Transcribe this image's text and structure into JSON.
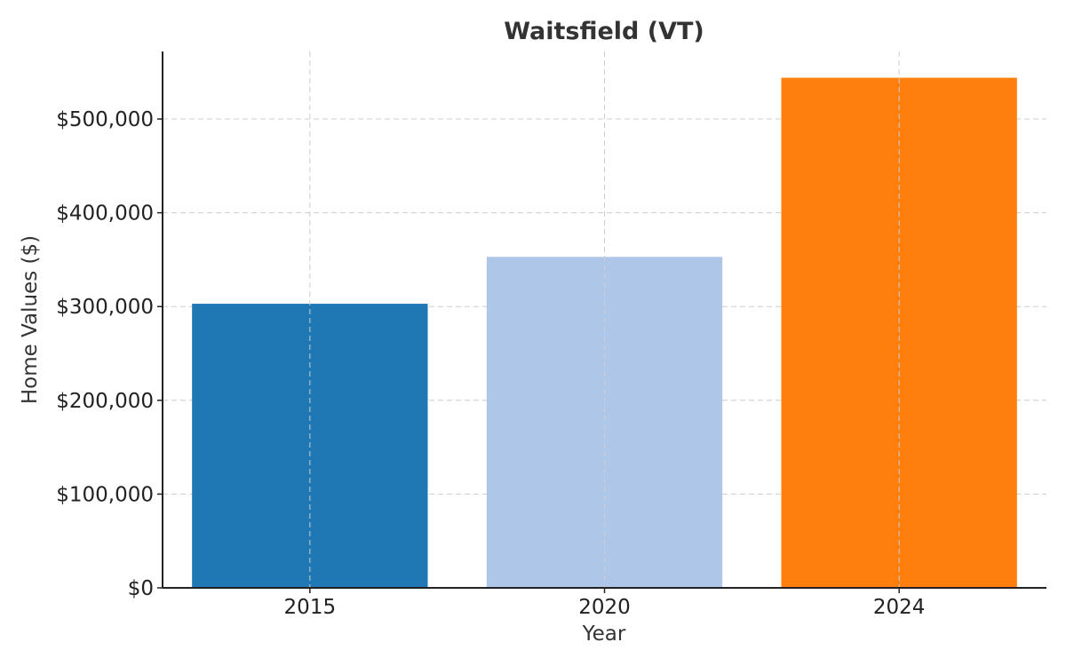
{
  "chart_data": {
    "type": "bar",
    "title": "Waitsfield (VT)",
    "xlabel": "Year",
    "ylabel": "Home Values ($)",
    "categories": [
      "2015",
      "2020",
      "2024"
    ],
    "values": [
      303000,
      353000,
      544000
    ],
    "colors": [
      "#1f77b4",
      "#aec7e8",
      "#ff7f0e"
    ],
    "ylim": [
      0,
      572000
    ],
    "yticks": [
      0,
      100000,
      200000,
      300000,
      400000,
      500000
    ],
    "ytick_labels": [
      "$0",
      "$100,000",
      "$200,000",
      "$300,000",
      "$400,000",
      "$500,000"
    ],
    "grid": true
  }
}
